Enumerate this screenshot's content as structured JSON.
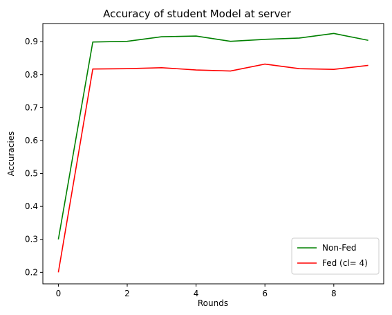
{
  "chart_data": {
    "type": "line",
    "title": "Accuracy of student Model at server",
    "xlabel": "Rounds",
    "ylabel": "Accuracies",
    "x": [
      0,
      1,
      2,
      3,
      4,
      5,
      6,
      7,
      8,
      9
    ],
    "xticks": [
      0,
      2,
      4,
      6,
      8
    ],
    "yticks": [
      0.2,
      0.3,
      0.4,
      0.5,
      0.6,
      0.7,
      0.8,
      0.9
    ],
    "xlim": [
      -0.45,
      9.45
    ],
    "ylim": [
      0.165,
      0.955
    ],
    "grid": false,
    "legend_position": "lower-right",
    "series": [
      {
        "name": "Non-Fed",
        "color": "#008000",
        "values": [
          0.3,
          0.899,
          0.901,
          0.915,
          0.917,
          0.901,
          0.907,
          0.911,
          0.925,
          0.904
        ]
      },
      {
        "name": "Fed (cl= 4)",
        "color": "#ff0000",
        "values": [
          0.2,
          0.817,
          0.818,
          0.821,
          0.814,
          0.811,
          0.832,
          0.818,
          0.816,
          0.828
        ]
      }
    ]
  }
}
